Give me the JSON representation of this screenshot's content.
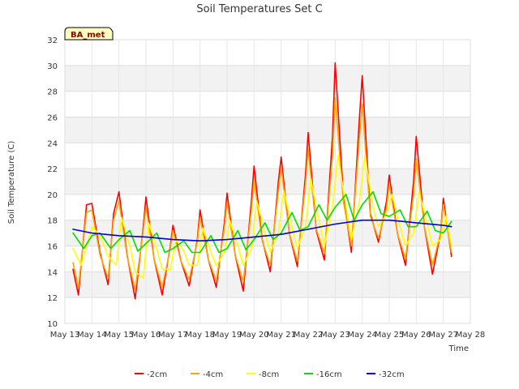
{
  "chart_data": {
    "type": "line",
    "title": "Soil Temperatures Set C",
    "xlabel": "Time",
    "ylabel": "Soil Temperature (C)",
    "badge": "BA_met",
    "ylim": [
      10,
      32
    ],
    "yticks": [
      10,
      12,
      14,
      16,
      18,
      20,
      22,
      24,
      26,
      28,
      30,
      32
    ],
    "xlim": [
      13,
      28
    ],
    "xticks": [
      {
        "v": 13,
        "label": "May 13"
      },
      {
        "v": 14,
        "label": "May 14"
      },
      {
        "v": 15,
        "label": "May 15"
      },
      {
        "v": 16,
        "label": "May 16"
      },
      {
        "v": 17,
        "label": "May 17"
      },
      {
        "v": 18,
        "label": "May 18"
      },
      {
        "v": 19,
        "label": "May 19"
      },
      {
        "v": 20,
        "label": "May 20"
      },
      {
        "v": 21,
        "label": "May 21"
      },
      {
        "v": 22,
        "label": "May 22"
      },
      {
        "v": 23,
        "label": "May 23"
      },
      {
        "v": 24,
        "label": "May 24"
      },
      {
        "v": 25,
        "label": "May 25"
      },
      {
        "v": 26,
        "label": "May 26"
      },
      {
        "v": 27,
        "label": "May 27"
      },
      {
        "v": 28,
        "label": "May 28"
      }
    ],
    "grid": true,
    "legend_position": "bottom",
    "series": [
      {
        "name": "-2cm",
        "color": "#ff0000",
        "x": [
          13.3,
          13.5,
          13.8,
          14.0,
          14.3,
          14.6,
          14.8,
          15.0,
          15.3,
          15.6,
          15.9,
          16.0,
          16.3,
          16.6,
          16.9,
          17.0,
          17.3,
          17.6,
          17.9,
          18.0,
          18.3,
          18.6,
          18.9,
          19.0,
          19.3,
          19.6,
          19.9,
          20.0,
          20.3,
          20.6,
          20.9,
          21.0,
          21.3,
          21.6,
          21.9,
          22.0,
          22.3,
          22.6,
          22.9,
          23.0,
          23.3,
          23.6,
          23.9,
          24.0,
          24.3,
          24.6,
          24.9,
          25.0,
          25.3,
          25.6,
          25.9,
          26.0,
          26.3,
          26.6,
          26.9,
          27.0,
          27.3
        ],
        "y": [
          14.2,
          12.2,
          19.2,
          19.3,
          15.5,
          13.0,
          18.5,
          20.2,
          15.3,
          11.9,
          17.5,
          19.8,
          15.0,
          12.2,
          16.0,
          17.6,
          14.8,
          12.9,
          16.5,
          18.8,
          15.0,
          12.8,
          17.8,
          20.1,
          15.3,
          12.5,
          19.5,
          22.2,
          16.5,
          14.0,
          21.0,
          22.9,
          17.0,
          14.4,
          21.5,
          24.8,
          17.2,
          14.9,
          24.5,
          30.2,
          20.0,
          15.5,
          26.0,
          29.2,
          18.5,
          16.3,
          19.5,
          21.5,
          17.0,
          14.5,
          21.0,
          24.5,
          17.5,
          13.8,
          17.0,
          19.7,
          15.2
        ]
      },
      {
        "name": "-4cm",
        "color": "#ffa500",
        "x": [
          13.3,
          13.5,
          13.8,
          14.0,
          14.3,
          14.6,
          14.8,
          15.0,
          15.3,
          15.6,
          15.9,
          16.0,
          16.3,
          16.6,
          16.9,
          17.0,
          17.3,
          17.6,
          17.9,
          18.0,
          18.3,
          18.6,
          18.9,
          19.0,
          19.3,
          19.6,
          19.9,
          20.0,
          20.3,
          20.6,
          20.9,
          21.0,
          21.3,
          21.6,
          21.9,
          22.0,
          22.3,
          22.6,
          22.9,
          23.0,
          23.3,
          23.6,
          23.9,
          24.0,
          24.3,
          24.6,
          24.9,
          25.0,
          25.3,
          25.6,
          25.9,
          26.0,
          26.3,
          26.6,
          26.9,
          27.0,
          27.3
        ],
        "y": [
          14.7,
          12.8,
          18.6,
          18.8,
          15.3,
          13.5,
          18.0,
          19.5,
          15.2,
          12.6,
          17.2,
          19.0,
          15.0,
          12.8,
          15.8,
          17.2,
          14.8,
          13.4,
          16.3,
          18.2,
          15.0,
          13.3,
          17.4,
          19.4,
          15.3,
          13.2,
          18.8,
          21.1,
          16.4,
          14.5,
          20.3,
          22.1,
          17.0,
          14.8,
          20.8,
          23.5,
          17.3,
          15.4,
          23.0,
          27.5,
          19.5,
          16.0,
          24.5,
          27.0,
          18.3,
          16.6,
          19.0,
          20.8,
          17.0,
          15.0,
          20.0,
          22.8,
          17.5,
          14.5,
          17.0,
          19.2,
          15.5
        ]
      },
      {
        "name": "-8cm",
        "color": "#ffff00",
        "x": [
          13.3,
          13.6,
          14.0,
          14.3,
          14.6,
          14.9,
          15.1,
          15.4,
          15.6,
          15.9,
          16.1,
          16.4,
          16.6,
          16.9,
          17.1,
          17.4,
          17.6,
          17.9,
          18.1,
          18.4,
          18.6,
          18.9,
          19.1,
          19.4,
          19.6,
          19.9,
          20.1,
          20.4,
          20.6,
          20.9,
          21.1,
          21.4,
          21.6,
          21.9,
          22.1,
          22.4,
          22.6,
          22.9,
          23.1,
          23.4,
          23.6,
          23.9,
          24.1,
          24.4,
          24.6,
          24.9,
          25.1,
          25.4,
          25.6,
          25.9,
          26.1,
          26.4,
          26.6,
          26.9,
          27.1,
          27.3
        ],
        "y": [
          15.8,
          14.5,
          17.5,
          16.8,
          15.2,
          14.5,
          18.2,
          16.0,
          14.0,
          13.5,
          17.8,
          15.8,
          14.2,
          14.2,
          16.5,
          15.6,
          14.5,
          14.5,
          17.4,
          15.5,
          14.5,
          15.5,
          18.0,
          16.0,
          14.5,
          15.8,
          19.5,
          17.0,
          15.5,
          17.0,
          20.3,
          17.5,
          15.8,
          17.5,
          21.2,
          18.0,
          16.0,
          19.0,
          23.0,
          19.0,
          16.5,
          19.5,
          23.0,
          19.0,
          17.5,
          18.5,
          20.0,
          17.5,
          16.0,
          17.0,
          20.2,
          17.8,
          16.0,
          16.5,
          18.3,
          16.0
        ]
      },
      {
        "name": "-16cm",
        "color": "#00dd00",
        "x": [
          13.3,
          13.7,
          14.0,
          14.3,
          14.7,
          15.0,
          15.4,
          15.7,
          16.0,
          16.4,
          16.7,
          17.0,
          17.4,
          17.7,
          18.0,
          18.4,
          18.7,
          19.0,
          19.4,
          19.7,
          20.0,
          20.4,
          20.7,
          21.0,
          21.4,
          21.7,
          22.0,
          22.4,
          22.7,
          23.0,
          23.4,
          23.7,
          24.0,
          24.4,
          24.7,
          25.0,
          25.4,
          25.7,
          26.0,
          26.4,
          26.7,
          27.0,
          27.3
        ],
        "y": [
          17.0,
          15.8,
          16.8,
          17.0,
          15.8,
          16.5,
          17.2,
          15.6,
          16.2,
          17.0,
          15.5,
          15.8,
          16.4,
          15.5,
          15.5,
          16.8,
          15.5,
          15.8,
          17.2,
          15.7,
          16.5,
          17.8,
          16.5,
          17.0,
          18.6,
          17.2,
          17.5,
          19.2,
          18.0,
          19.0,
          20.0,
          18.0,
          19.2,
          20.2,
          18.5,
          18.3,
          18.8,
          17.5,
          17.5,
          18.7,
          17.2,
          17.0,
          17.9
        ]
      },
      {
        "name": "-32cm",
        "color": "#0000cc",
        "x": [
          13.3,
          14.0,
          15.0,
          16.0,
          17.0,
          18.0,
          19.0,
          20.0,
          21.0,
          22.0,
          23.0,
          24.0,
          25.0,
          26.0,
          27.0,
          27.3
        ],
        "y": [
          17.3,
          17.0,
          16.8,
          16.7,
          16.5,
          16.4,
          16.5,
          16.7,
          16.9,
          17.3,
          17.7,
          18.0,
          18.0,
          17.8,
          17.6,
          17.5
        ]
      }
    ]
  }
}
